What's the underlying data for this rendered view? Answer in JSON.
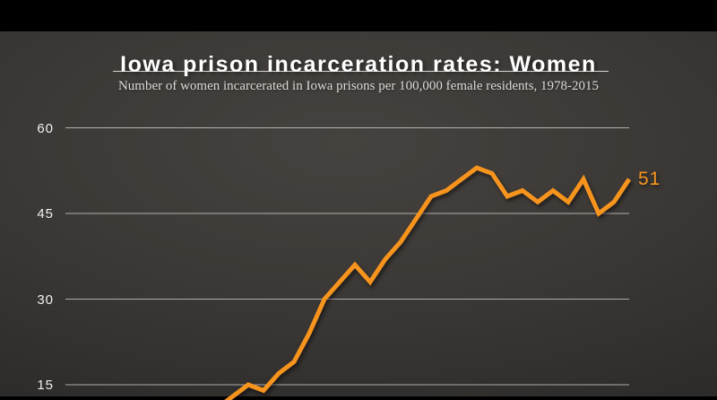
{
  "slide": {
    "title": "Iowa prison incarceration rates: Women",
    "subtitle": "Number of women incarcerated in Iowa prisons per 100,000 female residents, 1978-2015"
  },
  "colors": {
    "accent_orange": "#f7941e",
    "grid_line": "rgba(255,255,255,0.6)",
    "background_dark": "#3b3835",
    "letterbox_black": "#000000",
    "text_white": "#f2f1ee"
  },
  "chart_data": {
    "type": "line",
    "title": "Iowa prison incarceration rates: Women",
    "subtitle": "Number of women incarcerated in Iowa prisons per 100,000 female residents, 1978-2015",
    "x_range_full": [
      1978,
      2015
    ],
    "yticks": [
      15,
      30,
      45,
      60
    ],
    "ylim": [
      15,
      60
    ],
    "grid": true,
    "legend": "none",
    "x_axis_labels_visible": false,
    "end_label": "51",
    "series": [
      {
        "name": "Women incarcerated in Iowa prisons per 100,000 female residents",
        "x": [
          1988,
          1989,
          1990,
          1991,
          1992,
          1993,
          1994,
          1995,
          1996,
          1997,
          1998,
          1999,
          2000,
          2001,
          2002,
          2003,
          2004,
          2005,
          2006,
          2007,
          2008,
          2009,
          2010,
          2011,
          2012,
          2013,
          2014,
          2015
        ],
        "values": [
          11,
          13,
          15,
          14,
          17,
          19,
          24,
          30,
          33,
          36,
          33,
          37,
          40,
          44,
          48,
          49,
          51,
          53,
          52,
          48,
          49,
          47,
          49,
          47,
          51,
          45,
          47,
          51
        ]
      }
    ]
  }
}
